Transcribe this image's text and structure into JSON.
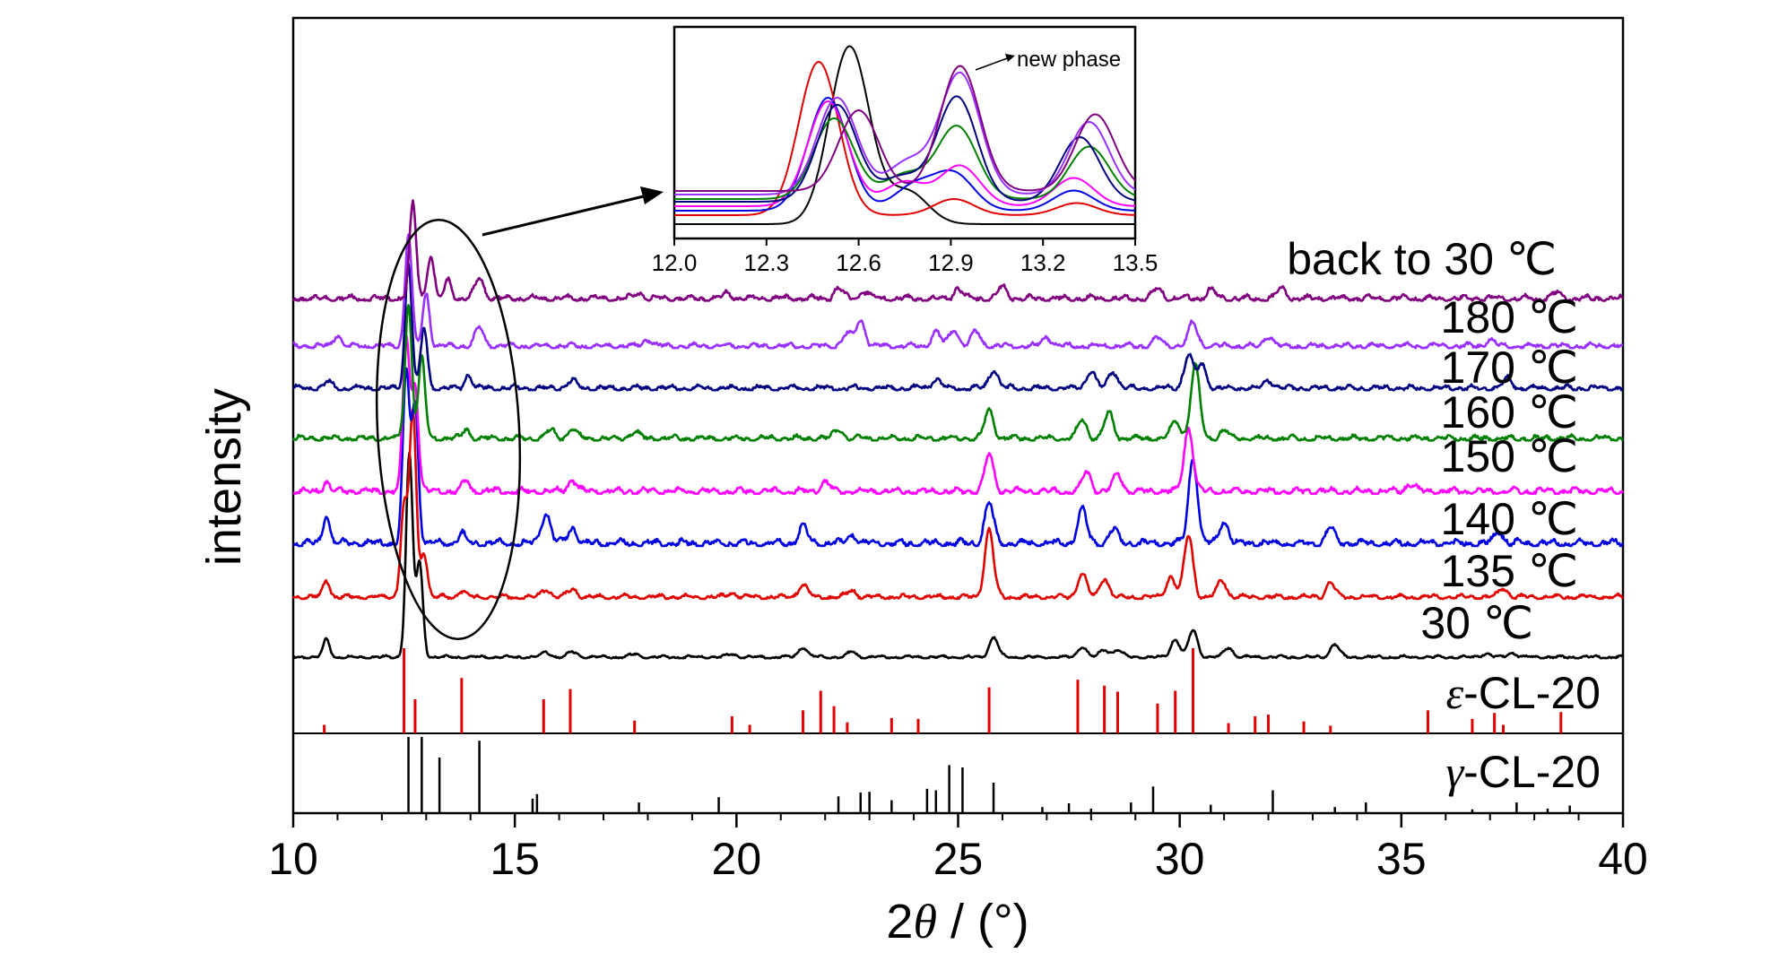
{
  "chart_data": [
    {
      "type": "line",
      "xlabel_parts": [
        "2",
        "θ",
        " / (°)"
      ],
      "ylabel": "intensity",
      "xlim": [
        10,
        40
      ],
      "xticks": [
        10,
        15,
        20,
        25,
        30,
        35,
        40
      ],
      "series": [
        {
          "label": "30 ℃",
          "color": "#000000",
          "peaks": [
            [
              10.75,
              48
            ],
            [
              12.62,
              560
            ],
            [
              12.85,
              260
            ],
            [
              15.7,
              14
            ],
            [
              16.3,
              14
            ],
            [
              17.7,
              8
            ],
            [
              19.9,
              8
            ],
            [
              21.5,
              28
            ],
            [
              22.6,
              14
            ],
            [
              25.8,
              55
            ],
            [
              27.8,
              30
            ],
            [
              28.3,
              20
            ],
            [
              28.6,
              20
            ],
            [
              29.9,
              50
            ],
            [
              30.3,
              75
            ],
            [
              31.1,
              26
            ],
            [
              33.5,
              36
            ],
            [
              36.9,
              10
            ],
            [
              37.5,
              12
            ]
          ]
        },
        {
          "label": "135 ℃",
          "color": "#e00000",
          "peaks": [
            [
              10.75,
              30
            ],
            [
              12.5,
              160
            ],
            [
              12.7,
              330
            ],
            [
              12.95,
              80
            ],
            [
              13.8,
              12
            ],
            [
              15.7,
              14
            ],
            [
              16.3,
              14
            ],
            [
              19.9,
              8
            ],
            [
              21.5,
              22
            ],
            [
              22.6,
              12
            ],
            [
              25.7,
              120
            ],
            [
              27.8,
              42
            ],
            [
              28.3,
              34
            ],
            [
              29.8,
              36
            ],
            [
              30.2,
              110
            ],
            [
              30.95,
              30
            ],
            [
              33.4,
              26
            ],
            [
              37.3,
              16
            ]
          ]
        },
        {
          "label": "140 ℃",
          "color": "#0000e0",
          "peaks": [
            [
              10.75,
              34
            ],
            [
              12.55,
              200
            ],
            [
              12.75,
              160
            ],
            [
              13.8,
              12
            ],
            [
              15.7,
              36
            ],
            [
              16.3,
              18
            ],
            [
              21.5,
              20
            ],
            [
              22.6,
              10
            ],
            [
              25.7,
              48
            ],
            [
              27.8,
              40
            ],
            [
              28.5,
              16
            ],
            [
              30.3,
              100
            ],
            [
              31.0,
              26
            ],
            [
              33.4,
              18
            ],
            [
              37.2,
              14
            ]
          ]
        },
        {
          "label": "150 ℃",
          "color": "#ff00ff",
          "peaks": [
            [
              10.75,
              12
            ],
            [
              12.55,
              190
            ],
            [
              12.75,
              130
            ],
            [
              13.9,
              14
            ],
            [
              16.3,
              14
            ],
            [
              22.0,
              12
            ],
            [
              25.7,
              45
            ],
            [
              27.9,
              24
            ],
            [
              28.6,
              22
            ],
            [
              30.2,
              80
            ],
            [
              35.2,
              10
            ]
          ]
        },
        {
          "label": "160 ℃",
          "color": "#008000",
          "peaks": [
            [
              12.6,
              200
            ],
            [
              12.9,
              120
            ],
            [
              13.9,
              14
            ],
            [
              15.8,
              12
            ],
            [
              16.3,
              14
            ],
            [
              17.7,
              10
            ],
            [
              22.3,
              14
            ],
            [
              25.7,
              42
            ],
            [
              27.8,
              28
            ],
            [
              28.4,
              38
            ],
            [
              29.9,
              26
            ],
            [
              30.35,
              108
            ],
            [
              31.0,
              12
            ]
          ]
        },
        {
          "label": "170 ℃",
          "color": "#000080",
          "peaks": [
            [
              10.8,
              10
            ],
            [
              12.6,
              190
            ],
            [
              12.95,
              90
            ],
            [
              13.95,
              22
            ],
            [
              16.3,
              12
            ],
            [
              24.5,
              14
            ],
            [
              25.8,
              28
            ],
            [
              28.0,
              26
            ],
            [
              28.5,
              26
            ],
            [
              30.2,
              50
            ],
            [
              30.5,
              36
            ],
            [
              32.0,
              12
            ],
            [
              37.4,
              14
            ]
          ]
        },
        {
          "label": "180 ℃",
          "color": "#9a30ff",
          "peaks": [
            [
              11.0,
              18
            ],
            [
              12.6,
              170
            ],
            [
              13.0,
              80
            ],
            [
              14.2,
              28
            ],
            [
              18.0,
              10
            ],
            [
              22.5,
              18
            ],
            [
              22.8,
              40
            ],
            [
              24.5,
              22
            ],
            [
              24.9,
              26
            ],
            [
              25.4,
              22
            ],
            [
              27.0,
              14
            ],
            [
              29.5,
              12
            ],
            [
              30.3,
              36
            ],
            [
              32.0,
              16
            ],
            [
              37.0,
              10
            ]
          ]
        },
        {
          "label": "back to 30 ℃",
          "color": "#800080",
          "peaks": [
            [
              12.7,
              130
            ],
            [
              13.1,
              60
            ],
            [
              13.5,
              25
            ],
            [
              14.2,
              28
            ],
            [
              17.8,
              8
            ],
            [
              19.8,
              8
            ],
            [
              22.3,
              14
            ],
            [
              22.9,
              10
            ],
            [
              25.0,
              14
            ],
            [
              26.0,
              16
            ],
            [
              29.5,
              14
            ],
            [
              30.7,
              12
            ],
            [
              32.3,
              14
            ],
            [
              38.5,
              8
            ]
          ]
        }
      ],
      "reference_patterns": [
        {
          "label_symbol": "ε",
          "label_text": "-CL-20",
          "color": "#e00000",
          "lines": [
            [
              10.7,
              10
            ],
            [
              12.5,
              100
            ],
            [
              12.75,
              40
            ],
            [
              13.8,
              65
            ],
            [
              15.65,
              40
            ],
            [
              16.25,
              52
            ],
            [
              17.7,
              15
            ],
            [
              19.9,
              20
            ],
            [
              20.3,
              10
            ],
            [
              21.5,
              27
            ],
            [
              21.9,
              50
            ],
            [
              22.2,
              32
            ],
            [
              22.5,
              13
            ],
            [
              23.5,
              18
            ],
            [
              24.1,
              17
            ],
            [
              25.7,
              54
            ],
            [
              27.7,
              63
            ],
            [
              28.3,
              56
            ],
            [
              28.6,
              49
            ],
            [
              29.5,
              35
            ],
            [
              29.9,
              50
            ],
            [
              30.3,
              100
            ],
            [
              31.1,
              12
            ],
            [
              31.7,
              20
            ],
            [
              32.0,
              22
            ],
            [
              32.8,
              14
            ],
            [
              33.4,
              9
            ],
            [
              35.6,
              27
            ],
            [
              36.6,
              17
            ],
            [
              37.1,
              24
            ],
            [
              37.3,
              10
            ],
            [
              38.6,
              25
            ]
          ]
        },
        {
          "label_symbol": "γ",
          "label_text": "-CL-20",
          "color": "#000000",
          "lines": [
            [
              12.6,
              100
            ],
            [
              12.9,
              100
            ],
            [
              13.3,
              73
            ],
            [
              14.2,
              95
            ],
            [
              15.4,
              19
            ],
            [
              15.5,
              25
            ],
            [
              17.8,
              14
            ],
            [
              19.6,
              21
            ],
            [
              22.3,
              22
            ],
            [
              22.8,
              27
            ],
            [
              23.0,
              28
            ],
            [
              23.5,
              17
            ],
            [
              24.3,
              32
            ],
            [
              24.5,
              30
            ],
            [
              24.8,
              63
            ],
            [
              25.1,
              60
            ],
            [
              25.8,
              40
            ],
            [
              26.9,
              8
            ],
            [
              27.5,
              13
            ],
            [
              28.0,
              6
            ],
            [
              28.9,
              14
            ],
            [
              29.4,
              35
            ],
            [
              30.7,
              11
            ],
            [
              32.1,
              30
            ],
            [
              33.5,
              8
            ],
            [
              34.2,
              14
            ],
            [
              36.6,
              5
            ],
            [
              37.6,
              14
            ],
            [
              38.3,
              6
            ],
            [
              38.8,
              10
            ]
          ]
        }
      ]
    },
    {
      "type": "line",
      "inset": true,
      "annotation": "new phase",
      "xlim": [
        12.0,
        13.5
      ],
      "xticks": [
        "12.0",
        "12.3",
        "12.6",
        "12.9",
        "13.2",
        "13.5"
      ],
      "series": [
        {
          "color": "#000000",
          "peaks": [
            [
              12.57,
              220
            ],
            [
              12.76,
              40
            ]
          ]
        },
        {
          "color": "#e00000",
          "peaks": [
            [
              12.47,
              190
            ],
            [
              12.91,
              20
            ],
            [
              13.31,
              15
            ]
          ]
        },
        {
          "color": "#0000e0",
          "peaks": [
            [
              12.5,
              140
            ],
            [
              12.78,
              30
            ],
            [
              12.91,
              45
            ],
            [
              13.3,
              25
            ]
          ]
        },
        {
          "color": "#ff00ff",
          "peaks": [
            [
              12.5,
              130
            ],
            [
              12.75,
              30
            ],
            [
              12.93,
              50
            ],
            [
              13.3,
              35
            ]
          ]
        },
        {
          "color": "#008000",
          "peaks": [
            [
              12.52,
              100
            ],
            [
              12.75,
              30
            ],
            [
              12.92,
              90
            ],
            [
              13.35,
              65
            ]
          ]
        },
        {
          "color": "#000080",
          "peaks": [
            [
              12.53,
              120
            ],
            [
              12.74,
              30
            ],
            [
              12.92,
              130
            ],
            [
              13.32,
              80
            ]
          ]
        },
        {
          "color": "#9a30ff",
          "peaks": [
            [
              12.53,
              120
            ],
            [
              12.76,
              40
            ],
            [
              12.93,
              150
            ],
            [
              13.35,
              90
            ]
          ]
        },
        {
          "color": "#800080",
          "peaks": [
            [
              12.6,
              100
            ],
            [
              12.93,
              155
            ],
            [
              13.37,
              95
            ]
          ]
        }
      ]
    }
  ]
}
